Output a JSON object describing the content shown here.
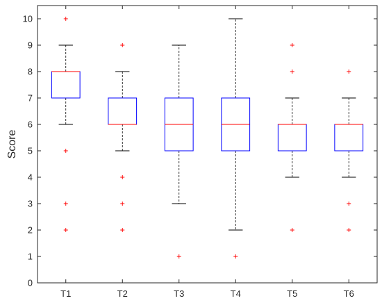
{
  "chart_data": {
    "type": "box",
    "ylabel": "Score",
    "xlabel": "",
    "ylim": [
      0,
      10.5
    ],
    "yticks": [
      "0",
      "1",
      "2",
      "3",
      "4",
      "5",
      "6",
      "7",
      "8",
      "9",
      "10"
    ],
    "categories": [
      "T1",
      "T2",
      "T3",
      "T4",
      "T5",
      "T6"
    ],
    "boxes": [
      {
        "label": "T1",
        "whisker_low": 6,
        "q1": 7,
        "median": 8,
        "q3": 8,
        "whisker_high": 9,
        "outliers": [
          10,
          5,
          3,
          2
        ]
      },
      {
        "label": "T2",
        "whisker_low": 5,
        "q1": 6,
        "median": 6,
        "q3": 7,
        "whisker_high": 8,
        "outliers": [
          9,
          4,
          3,
          2
        ]
      },
      {
        "label": "T3",
        "whisker_low": 3,
        "q1": 5,
        "median": 6,
        "q3": 7,
        "whisker_high": 9,
        "outliers": [
          1
        ]
      },
      {
        "label": "T4",
        "whisker_low": 2,
        "q1": 5,
        "median": 6,
        "q3": 7,
        "whisker_high": 10,
        "outliers": [
          1
        ]
      },
      {
        "label": "T5",
        "whisker_low": 4,
        "q1": 5,
        "median": 6,
        "q3": 6,
        "whisker_high": 7,
        "outliers": [
          9,
          8,
          2
        ]
      },
      {
        "label": "T6",
        "whisker_low": 4,
        "q1": 5,
        "median": 6,
        "q3": 6,
        "whisker_high": 7,
        "outliers": [
          8,
          3,
          2
        ]
      }
    ],
    "grid": false,
    "colors": {
      "box": "#0000ff",
      "median": "#ff0000",
      "whisker": "#000000",
      "outlier": "#ff0000",
      "axes": "#262626"
    }
  }
}
